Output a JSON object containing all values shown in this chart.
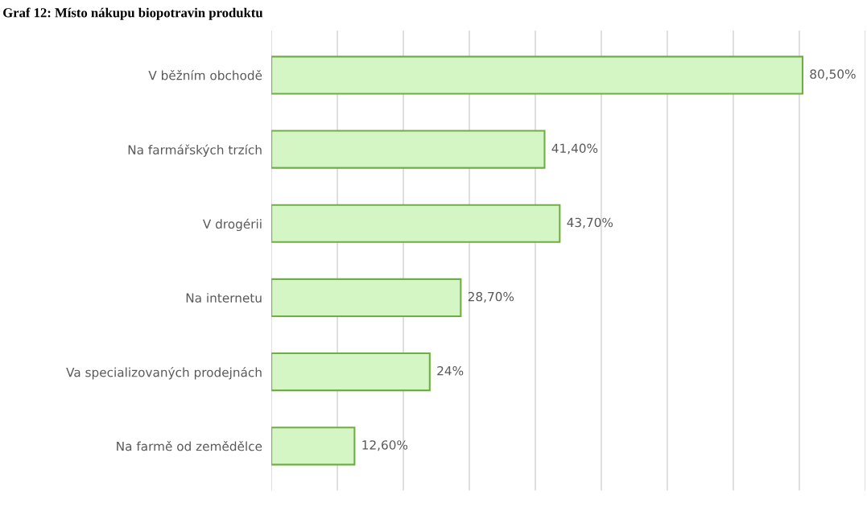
{
  "chart_data": {
    "type": "bar",
    "orientation": "horizontal",
    "title": "Graf 12: Místo nákupu biopotravin produktu",
    "categories": [
      "V běžním obchodě",
      "Na farmářských trzích",
      "V drogérii",
      "Na internetu",
      "Va specializovaných prodejnách",
      "Na farmě od zemědělce"
    ],
    "values": [
      80.5,
      41.4,
      43.7,
      28.7,
      24,
      12.6
    ],
    "value_labels": [
      "80,50%",
      "41,40%",
      "43,70%",
      "28,70%",
      "24%",
      "12,60%"
    ],
    "color": "#d4f5c4",
    "xlim": [
      0,
      90
    ],
    "xticks": [
      {
        "value": 0,
        "label": null
      },
      {
        "value": 10,
        "label": null
      },
      {
        "value": 20,
        "label": null
      },
      {
        "value": 30,
        "label": null
      },
      {
        "value": 40,
        "label": null
      },
      {
        "value": 50,
        "label": null
      },
      {
        "value": 60,
        "label": null
      },
      {
        "value": 70,
        "label": null
      },
      {
        "value": 80,
        "label": null
      },
      {
        "value": 90,
        "label": null
      }
    ],
    "tick_labels": "y",
    "grid": "x"
  }
}
